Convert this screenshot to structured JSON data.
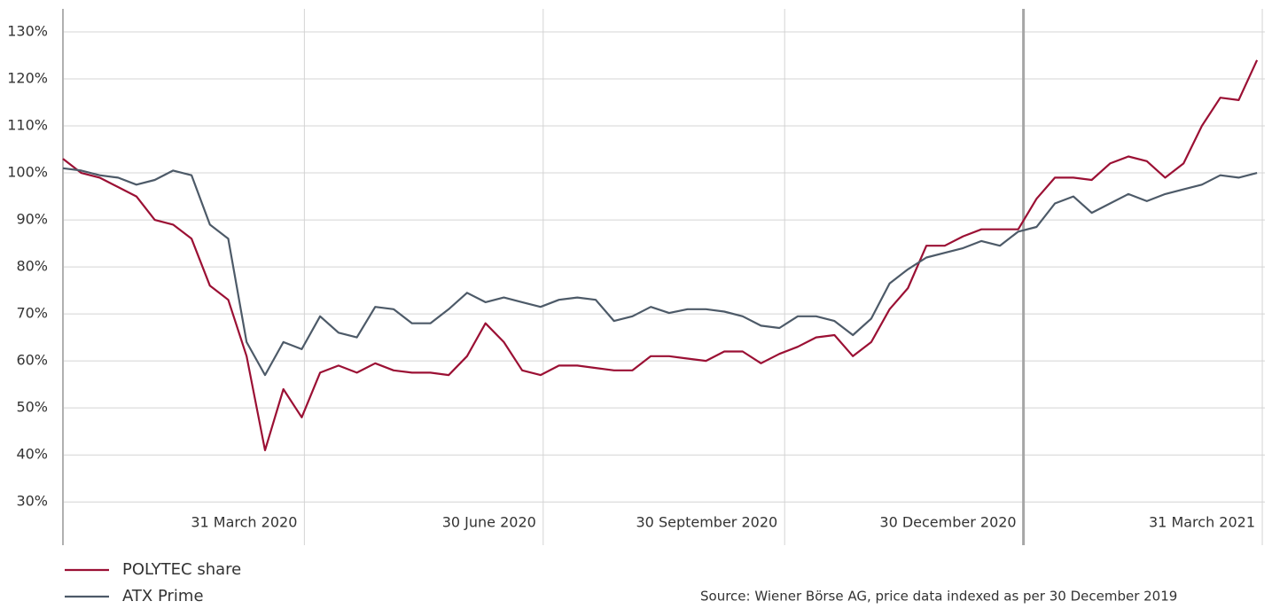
{
  "chart_data": {
    "type": "line",
    "x": [
      "2019-12-30",
      "2020-01-06",
      "2020-01-13",
      "2020-01-20",
      "2020-01-27",
      "2020-02-03",
      "2020-02-10",
      "2020-02-17",
      "2020-02-24",
      "2020-03-02",
      "2020-03-09",
      "2020-03-16",
      "2020-03-23",
      "2020-03-30",
      "2020-04-06",
      "2020-04-13",
      "2020-04-20",
      "2020-04-27",
      "2020-05-04",
      "2020-05-11",
      "2020-05-18",
      "2020-05-25",
      "2020-06-01",
      "2020-06-08",
      "2020-06-15",
      "2020-06-22",
      "2020-06-29",
      "2020-07-06",
      "2020-07-13",
      "2020-07-20",
      "2020-07-27",
      "2020-08-03",
      "2020-08-10",
      "2020-08-17",
      "2020-08-24",
      "2020-08-31",
      "2020-09-07",
      "2020-09-14",
      "2020-09-21",
      "2020-09-28",
      "2020-10-05",
      "2020-10-12",
      "2020-10-19",
      "2020-10-26",
      "2020-11-02",
      "2020-11-09",
      "2020-11-16",
      "2020-11-23",
      "2020-11-30",
      "2020-12-07",
      "2020-12-14",
      "2020-12-21",
      "2020-12-28",
      "2021-01-04",
      "2021-01-11",
      "2021-01-18",
      "2021-01-25",
      "2021-02-01",
      "2021-02-08",
      "2021-02-15",
      "2021-02-22",
      "2021-03-01",
      "2021-03-08",
      "2021-03-15",
      "2021-03-22",
      "2021-03-29"
    ],
    "series": [
      {
        "name": "POLYTEC share",
        "color": "#9b1034",
        "values": [
          103,
          100,
          99,
          97,
          95,
          90,
          89,
          86,
          76,
          73,
          61,
          41,
          54,
          48,
          57.5,
          59,
          57.5,
          59.5,
          58,
          57.5,
          57.5,
          57,
          61,
          68,
          64,
          58,
          57,
          59,
          59,
          58.5,
          58,
          58,
          61,
          61,
          60.5,
          60,
          62,
          62,
          59.5,
          61.5,
          63,
          65,
          65.5,
          61,
          64,
          71,
          75.5,
          84.5,
          84.5,
          86.5,
          88,
          88,
          88,
          94.5,
          99,
          99,
          98.5,
          102,
          103.5,
          102.5,
          99,
          102,
          110,
          116,
          115.5,
          124
        ]
      },
      {
        "name": "ATX Prime",
        "color": "#4d5a68",
        "values": [
          101,
          100.5,
          99.5,
          99,
          97.5,
          98.5,
          100.5,
          99.5,
          89,
          86,
          64,
          57,
          64,
          62.5,
          69.5,
          66,
          65,
          71.5,
          71,
          68,
          68,
          71,
          74.5,
          72.5,
          73.5,
          72.5,
          71.5,
          73,
          73.5,
          73,
          68.5,
          69.5,
          71.5,
          70.2,
          71,
          71,
          70.5,
          69.5,
          67.5,
          67,
          69.5,
          69.5,
          68.5,
          65.5,
          69,
          76.5,
          79.5,
          82,
          83,
          84,
          85.5,
          84.5,
          87.5,
          88.5,
          93.5,
          95,
          91.5,
          93.5,
          95.5,
          94,
          95.5,
          96.5,
          97.5,
          99.5,
          99,
          100
        ]
      }
    ],
    "xlim": [
      "2019-12-30",
      "2021-04-01"
    ],
    "xticks": [
      {
        "value": "2020-03-31",
        "label": "31 March 2020"
      },
      {
        "value": "2020-06-30",
        "label": "30 June 2020"
      },
      {
        "value": "2020-09-30",
        "label": "30 September 2020"
      },
      {
        "value": "2020-12-30",
        "label": "30 December 2020"
      },
      {
        "value": "2021-03-31",
        "label": "31 March 2021"
      }
    ],
    "ylim": [
      20.8,
      134.9
    ],
    "yticks": [
      {
        "value": 30,
        "label": "30%"
      },
      {
        "value": 40,
        "label": "40%"
      },
      {
        "value": 50,
        "label": "50%"
      },
      {
        "value": 60,
        "label": "60%"
      },
      {
        "value": 70,
        "label": "70%"
      },
      {
        "value": 80,
        "label": "80%"
      },
      {
        "value": 90,
        "label": "90%"
      },
      {
        "value": 100,
        "label": "100%"
      },
      {
        "value": 110,
        "label": "110%"
      },
      {
        "value": 120,
        "label": "120%"
      },
      {
        "value": 130,
        "label": "130%"
      }
    ],
    "grid": true,
    "legend": "bottom-left",
    "source": "Source: Wiener Börse AG, price data indexed as per 30 December 2019"
  }
}
